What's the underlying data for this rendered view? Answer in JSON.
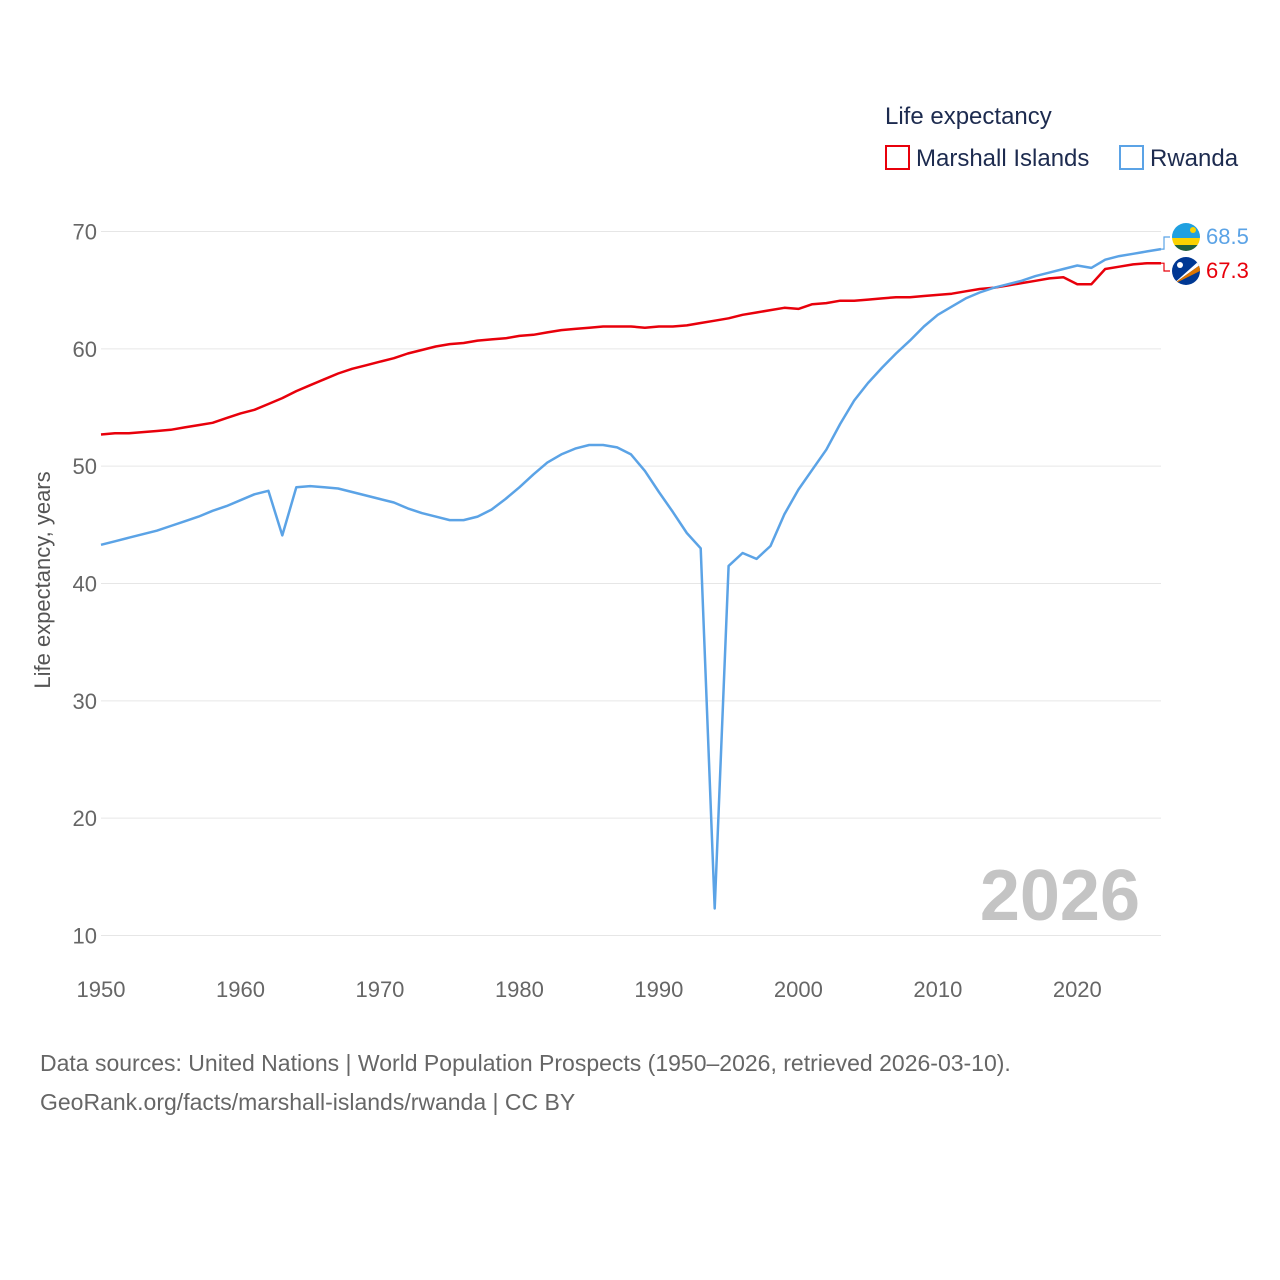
{
  "chart_data": {
    "type": "line",
    "title": "",
    "xlabel": "",
    "ylabel": "Life expectancy, years",
    "xlim": [
      1950,
      2026
    ],
    "ylim": [
      10,
      70
    ],
    "xticks": [
      1950,
      1960,
      1970,
      1980,
      1990,
      2000,
      2010,
      2020
    ],
    "yticks": [
      10,
      20,
      30,
      40,
      50,
      60,
      70
    ],
    "xtick_labels": [
      "1950",
      "1960",
      "1970",
      "1980",
      "1990",
      "2000",
      "2010",
      "2020"
    ],
    "ytick_labels": [
      "10",
      "20",
      "30",
      "40",
      "50",
      "60",
      "70"
    ],
    "grid": true,
    "legend": {
      "title": "Life expectancy",
      "placement": "top-right",
      "entries": [
        "Marshall Islands",
        "Rwanda"
      ]
    },
    "watermark": "2026",
    "series": [
      {
        "name": "Marshall Islands",
        "color": "#e8000b",
        "end_label": "67.3",
        "flag_icon": "marshall-islands-flag-icon",
        "x": [
          1950,
          1951,
          1952,
          1953,
          1954,
          1955,
          1956,
          1957,
          1958,
          1959,
          1960,
          1961,
          1962,
          1963,
          1964,
          1965,
          1966,
          1967,
          1968,
          1969,
          1970,
          1971,
          1972,
          1973,
          1974,
          1975,
          1976,
          1977,
          1978,
          1979,
          1980,
          1981,
          1982,
          1983,
          1984,
          1985,
          1986,
          1987,
          1988,
          1989,
          1990,
          1991,
          1992,
          1993,
          1994,
          1995,
          1996,
          1997,
          1998,
          1999,
          2000,
          2001,
          2002,
          2003,
          2004,
          2005,
          2006,
          2007,
          2008,
          2009,
          2010,
          2011,
          2012,
          2013,
          2014,
          2015,
          2016,
          2017,
          2018,
          2019,
          2020,
          2021,
          2022,
          2023,
          2024,
          2025,
          2026
        ],
        "values": [
          52.7,
          52.8,
          52.8,
          52.9,
          53.0,
          53.1,
          53.3,
          53.5,
          53.7,
          54.1,
          54.5,
          54.8,
          55.3,
          55.8,
          56.4,
          56.9,
          57.4,
          57.9,
          58.3,
          58.6,
          58.9,
          59.2,
          59.6,
          59.9,
          60.2,
          60.4,
          60.5,
          60.7,
          60.8,
          60.9,
          61.1,
          61.2,
          61.4,
          61.6,
          61.7,
          61.8,
          61.9,
          61.9,
          61.9,
          61.8,
          61.9,
          61.9,
          62.0,
          62.2,
          62.4,
          62.6,
          62.9,
          63.1,
          63.3,
          63.5,
          63.4,
          63.8,
          63.9,
          64.1,
          64.1,
          64.2,
          64.3,
          64.4,
          64.4,
          64.5,
          64.6,
          64.7,
          64.9,
          65.1,
          65.2,
          65.4,
          65.6,
          65.8,
          66.0,
          66.1,
          65.5,
          65.5,
          66.8,
          67.0,
          67.2,
          67.3,
          67.3
        ]
      },
      {
        "name": "Rwanda",
        "color": "#5ba3e6",
        "end_label": "68.5",
        "flag_icon": "rwanda-flag-icon",
        "x": [
          1950,
          1951,
          1952,
          1953,
          1954,
          1955,
          1956,
          1957,
          1958,
          1959,
          1960,
          1961,
          1962,
          1963,
          1964,
          1965,
          1966,
          1967,
          1968,
          1969,
          1970,
          1971,
          1972,
          1973,
          1974,
          1975,
          1976,
          1977,
          1978,
          1979,
          1980,
          1981,
          1982,
          1983,
          1984,
          1985,
          1986,
          1987,
          1988,
          1989,
          1990,
          1991,
          1992,
          1993,
          1994,
          1995,
          1996,
          1997,
          1998,
          1999,
          2000,
          2001,
          2002,
          2003,
          2004,
          2005,
          2006,
          2007,
          2008,
          2009,
          2010,
          2011,
          2012,
          2013,
          2014,
          2015,
          2016,
          2017,
          2018,
          2019,
          2020,
          2021,
          2022,
          2023,
          2024,
          2025,
          2026
        ],
        "values": [
          43.3,
          43.6,
          43.9,
          44.2,
          44.5,
          44.9,
          45.3,
          45.7,
          46.2,
          46.6,
          47.1,
          47.6,
          47.9,
          44.1,
          48.2,
          48.3,
          48.2,
          48.1,
          47.8,
          47.5,
          47.2,
          46.9,
          46.4,
          46.0,
          45.7,
          45.4,
          45.4,
          45.7,
          46.3,
          47.2,
          48.2,
          49.3,
          50.3,
          51.0,
          51.5,
          51.8,
          51.8,
          51.6,
          51.0,
          49.6,
          47.8,
          46.1,
          44.3,
          43.0,
          12.3,
          41.5,
          42.6,
          42.1,
          43.2,
          45.9,
          48.0,
          49.7,
          51.4,
          53.6,
          55.6,
          57.1,
          58.4,
          59.6,
          60.7,
          61.9,
          62.9,
          63.6,
          64.3,
          64.8,
          65.2,
          65.5,
          65.8,
          66.2,
          66.5,
          66.8,
          67.1,
          66.9,
          67.6,
          67.9,
          68.1,
          68.3,
          68.5
        ]
      }
    ]
  },
  "footer": {
    "line1": "Data sources: United Nations | World Population Prospects (1950–2026, retrieved 2026-03-10).",
    "line2": "GeoRank.org/facts/marshall-islands/rwanda | CC BY"
  }
}
